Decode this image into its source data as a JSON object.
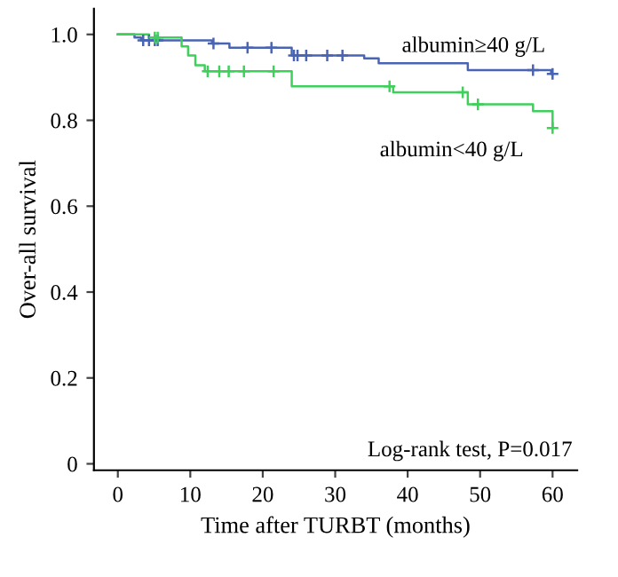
{
  "chart_data": {
    "type": "step",
    "xlabel": "Time after TURBT (months)",
    "ylabel": "Over-all survival",
    "series": [
      {
        "name": "albumin≥40 g/L",
        "color": "#4a64b4",
        "x": [
          0,
          2.3,
          3.2,
          13,
          15.4,
          24,
          34,
          36,
          48.3,
          59.8,
          60
        ],
        "values": [
          1.0,
          0.993,
          0.986,
          0.979,
          0.969,
          0.951,
          0.944,
          0.933,
          0.917,
          0.908,
          0.908
        ]
      },
      {
        "name": "albumin<40 g/L",
        "color": "#3ed05a",
        "x": [
          0,
          4.3,
          8.8,
          9.7,
          10.7,
          12,
          24,
          38,
          48.3,
          57.3,
          60
        ],
        "values": [
          1.0,
          0.993,
          0.972,
          0.951,
          0.928,
          0.914,
          0.879,
          0.865,
          0.837,
          0.821,
          0.782
        ]
      },
      {
        "type": "scatter",
        "marker": "cross",
        "color": "#4a64b4",
        "x": [
          3.5,
          4.3,
          5.1,
          5.5,
          13.2,
          17.9,
          21.2,
          24.3,
          24.8,
          26,
          28.9,
          31,
          57.3,
          60
        ],
        "values": [
          0.986,
          0.986,
          0.986,
          0.986,
          0.979,
          0.969,
          0.969,
          0.951,
          0.951,
          0.951,
          0.951,
          0.951,
          0.917,
          0.908
        ]
      },
      {
        "type": "scatter",
        "marker": "cross",
        "color": "#3ed05a",
        "x": [
          5.1,
          5.5,
          12.4,
          14,
          15.3,
          17.4,
          21.5,
          37.5,
          47.6,
          49.7,
          60
        ],
        "values": [
          0.993,
          0.993,
          0.914,
          0.914,
          0.914,
          0.914,
          0.914,
          0.879,
          0.865,
          0.837,
          0.782
        ]
      }
    ],
    "xlim": [
      -3.3,
      63.4
    ],
    "ylim": [
      -0.015,
      1.06
    ],
    "xticks": [
      0,
      10,
      20,
      30,
      40,
      50,
      60
    ],
    "yticks": [
      0,
      0.2,
      0.4,
      0.6,
      0.8,
      {
        "value": 1.0,
        "label": "1.0"
      }
    ],
    "annotations": [
      "Log-rank test, P=0.017"
    ],
    "grid": false,
    "legend": false
  }
}
